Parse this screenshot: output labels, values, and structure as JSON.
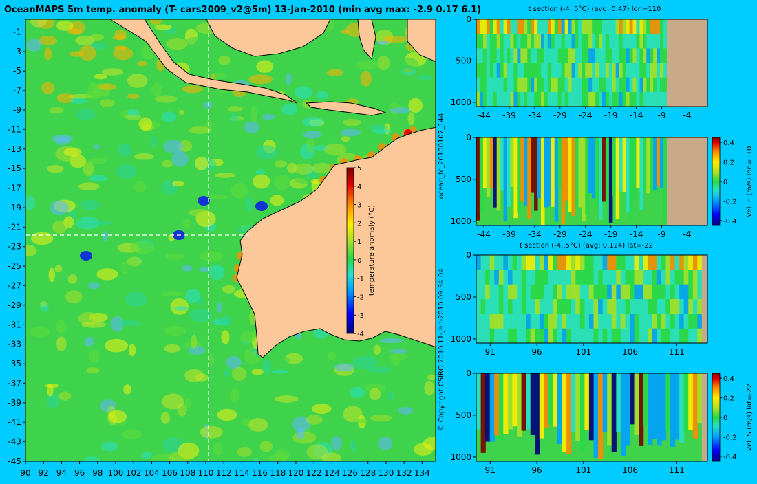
{
  "chart_data": [
    {
      "type": "heatmap",
      "title": "OceanMAPS 5m temp. anomaly (T- cars2009_v2@5m) 13-Jan-2010 (min avg max: -2.9 0.17 6.1)",
      "x_ticks": [
        90,
        92,
        94,
        96,
        98,
        100,
        102,
        104,
        106,
        108,
        110,
        112,
        114,
        116,
        118,
        120,
        122,
        124,
        126,
        128,
        130,
        132,
        134
      ],
      "y_ticks": [
        -1,
        -3,
        -5,
        -7,
        -9,
        -11,
        -13,
        -15,
        -17,
        -19,
        -21,
        -23,
        -25,
        -27,
        -29,
        -31,
        -33,
        -35,
        -37,
        -39,
        -41,
        -43,
        -45
      ],
      "xlim": [
        90,
        135.5
      ],
      "ylim": [
        -45,
        0.3
      ],
      "section_lines": {
        "lon": 110,
        "lat": -22
      },
      "colorbar": {
        "label": "temperature anomaly (°C)",
        "ticks": [
          "5",
          "4",
          "3",
          "2",
          "1",
          "0",
          "-1",
          "-2",
          "-3",
          "-4"
        ],
        "range": [
          -4,
          5
        ]
      },
      "stats": {
        "min": -2.9,
        "avg": 0.17,
        "max": 6.1
      }
    },
    {
      "type": "heatmap",
      "title": "t section (-4..5°C) (avg: 0.47) lon=110",
      "x_ticks": [
        "-44",
        "-39",
        "-34",
        "-29",
        "-24",
        "-19",
        "-14",
        "-9",
        "-4"
      ],
      "y_ticks": [
        "0",
        "500",
        "1000"
      ],
      "xlim": [
        -45.5,
        0
      ],
      "ylim": [
        0,
        1050
      ],
      "land_from_x": -8
    },
    {
      "type": "heatmap",
      "title": "",
      "x_ticks": [
        "-44",
        "-39",
        "-34",
        "-29",
        "-24",
        "-19",
        "-14",
        "-9",
        "-4"
      ],
      "y_ticks": [
        "0",
        "500",
        "1000"
      ],
      "xlim": [
        -45.5,
        0
      ],
      "ylim": [
        0,
        1050
      ],
      "land_from_x": -8,
      "colorbar": {
        "label": "vel. E (m/s) lon=110",
        "ticks": [
          "0.4",
          "0.2",
          "0",
          "-0.2",
          "-0.4"
        ],
        "range": [
          -0.45,
          0.45
        ]
      }
    },
    {
      "type": "heatmap",
      "title": "t section (-4..5°C) (avg: 0.124) lat=-22",
      "x_ticks": [
        "91",
        "96",
        "101",
        "106",
        "111"
      ],
      "y_ticks": [
        "0",
        "500",
        "1000"
      ],
      "xlim": [
        89.5,
        114.3
      ],
      "ylim": [
        0,
        1050
      ],
      "land_from_x": 113.7
    },
    {
      "type": "heatmap",
      "title": "",
      "x_ticks": [
        "91",
        "96",
        "101",
        "106",
        "111"
      ],
      "y_ticks": [
        "0",
        "500",
        "1000"
      ],
      "xlim": [
        89.5,
        114.3
      ],
      "ylim": [
        0,
        1050
      ],
      "land_from_x": 113.7,
      "colorbar": {
        "label": "vel. S (m/s) lat=-22",
        "ticks": [
          "0.4",
          "0.2",
          "0",
          "-0.2",
          "-0.4"
        ],
        "range": [
          -0.45,
          0.45
        ]
      }
    }
  ],
  "side_text": {
    "run_id": "ocean_fc_20100107_144",
    "run_time": "11-Jan-2010 09:34:04",
    "copyright": "© Copyright CSIRO 2010"
  },
  "colors": {
    "background": "#00ccff",
    "land": "#fcc89a",
    "section_land": "#c8aa88",
    "scale": [
      "#00007a",
      "#0000ff",
      "#00a0ff",
      "#28e0c8",
      "#28d84a",
      "#a8e02a",
      "#ffee00",
      "#ff8800",
      "#e00000",
      "#7a0000"
    ]
  }
}
